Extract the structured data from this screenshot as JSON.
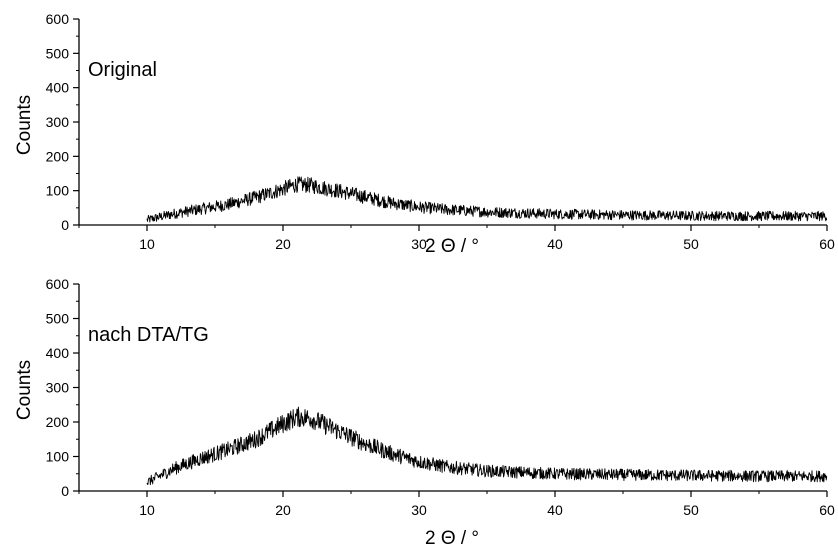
{
  "chart_data": [
    {
      "type": "line",
      "annotation": "Original",
      "xlabel": "2 Θ / °",
      "ylabel": "Counts",
      "xlim": [
        5,
        60
      ],
      "ylim": [
        0,
        600
      ],
      "x_ticks": [
        10,
        20,
        30,
        40,
        50,
        60
      ],
      "y_ticks": [
        0,
        100,
        200,
        300,
        400,
        500,
        600
      ],
      "grid": false,
      "line_color": "#000000",
      "series": [
        {
          "x": [
            10,
            12,
            14,
            16,
            18,
            20,
            21,
            22,
            24,
            26,
            28,
            30,
            32,
            35,
            40,
            45,
            50,
            55,
            60
          ],
          "values": [
            15,
            33,
            47,
            60,
            80,
            105,
            118,
            116,
            100,
            82,
            64,
            52,
            45,
            38,
            32,
            29,
            27,
            26,
            26
          ]
        }
      ]
    },
    {
      "type": "line",
      "annotation": "nach DTA/TG",
      "xlabel": "2 Θ / °",
      "ylabel": "Counts",
      "xlim": [
        5,
        60
      ],
      "ylim": [
        0,
        600
      ],
      "x_ticks": [
        10,
        20,
        30,
        40,
        50,
        60
      ],
      "y_ticks": [
        0,
        100,
        200,
        300,
        400,
        500,
        600
      ],
      "grid": false,
      "line_color": "#000000",
      "series": [
        {
          "x": [
            10,
            12,
            14,
            16,
            18,
            20,
            21,
            22,
            24,
            26,
            28,
            30,
            32,
            35,
            40,
            45,
            50,
            55,
            60
          ],
          "values": [
            25,
            65,
            95,
            120,
            150,
            195,
            215,
            212,
            175,
            138,
            108,
            85,
            70,
            58,
            50,
            47,
            45,
            43,
            43
          ]
        }
      ]
    }
  ]
}
